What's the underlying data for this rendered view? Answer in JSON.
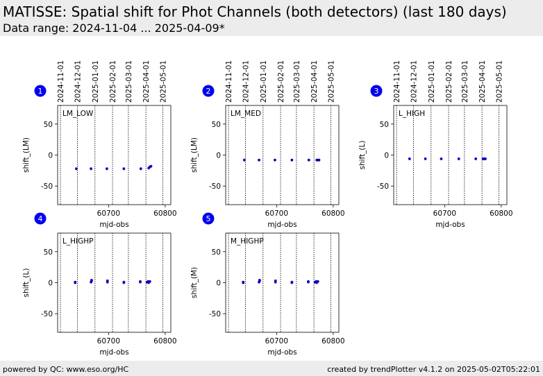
{
  "header": {
    "title": "MATISSE: Spatial shift for Phot Channels (both detectors) (last 180 days)",
    "subtitle": "Data range: 2024-11-04 ... 2025-04-09*"
  },
  "footer": {
    "left": "powered by QC: www.eso.org/HC",
    "right": "created by trendPlotter v4.1.2 on 2025-05-02T05:22:01"
  },
  "colors": {
    "point": "#0000cc",
    "point_alt": "#ff9900",
    "badge": "#0000ee",
    "guide": "#000000"
  },
  "date_guides": [
    "2024-11-01",
    "2024-12-01",
    "2025-01-01",
    "2025-02-01",
    "2025-03-01",
    "2025-04-01",
    "2025-05-01"
  ],
  "date_guides_mjd": [
    60615,
    60645,
    60676,
    60707,
    60735,
    60766,
    60796
  ],
  "chart_data": [
    {
      "type": "scatter",
      "badge": "1",
      "label": "LM_LOW",
      "xlabel": "mjd-obs",
      "ylabel": "shift_(LM)",
      "xlim": [
        60610,
        60810
      ],
      "ylim": [
        -80,
        80
      ],
      "xticks": [
        60700,
        60800
      ],
      "yticks": [
        50,
        0,
        -50
      ],
      "series": [
        {
          "values": [
            [
              60643,
              -22
            ],
            [
              60669,
              -22
            ],
            [
              60697,
              -22
            ],
            [
              60727,
              -22
            ],
            [
              60757,
              -22
            ],
            [
              60771,
              -21
            ],
            [
              60773,
              -19
            ],
            [
              60775,
              -18
            ]
          ]
        }
      ]
    },
    {
      "type": "scatter",
      "badge": "2",
      "label": "LM_MED",
      "xlabel": "mjd-obs",
      "ylabel": "shift_(LM)",
      "xlim": [
        60610,
        60810
      ],
      "ylim": [
        -80,
        80
      ],
      "xticks": [
        60700,
        60800
      ],
      "yticks": [
        50,
        0,
        -50
      ],
      "series": [
        {
          "values": [
            [
              60643,
              -8
            ],
            [
              60669,
              -8
            ],
            [
              60697,
              -8
            ],
            [
              60727,
              -8
            ],
            [
              60757,
              -8
            ],
            [
              60771,
              -8
            ],
            [
              60773,
              -8
            ],
            [
              60775,
              -8
            ]
          ]
        }
      ]
    },
    {
      "type": "scatter",
      "badge": "3",
      "label": "L_HIGH",
      "xlabel": "mjd-obs",
      "ylabel": "shift_(L)",
      "xlim": [
        60610,
        60810
      ],
      "ylim": [
        -80,
        80
      ],
      "xticks": [
        60700,
        60800
      ],
      "yticks": [
        50,
        0,
        -50
      ],
      "series": [
        {
          "values": [
            [
              60638,
              -6
            ],
            [
              60666,
              -6
            ],
            [
              60694,
              -6
            ],
            [
              60725,
              -6
            ],
            [
              60755,
              -6
            ],
            [
              60768,
              -6
            ],
            [
              60770,
              -6
            ],
            [
              60772,
              -6
            ]
          ]
        }
      ]
    },
    {
      "type": "scatter",
      "badge": "4",
      "label": "L_HIGHP",
      "xlabel": "mjd-obs",
      "ylabel": "shift_(L)",
      "xlim": [
        60610,
        60810
      ],
      "ylim": [
        -80,
        80
      ],
      "xticks": [
        60700,
        60800
      ],
      "yticks": [
        50,
        0,
        -50
      ],
      "series": [
        {
          "values": [
            [
              60641,
              1
            ],
            [
              60641,
              0
            ],
            [
              60670,
              3
            ],
            [
              60670,
              4
            ],
            [
              60669,
              1
            ],
            [
              60698,
              1
            ],
            [
              60698,
              3
            ],
            [
              60727,
              0
            ],
            [
              60727,
              1
            ],
            [
              60756,
              1
            ],
            [
              60756,
              2
            ],
            [
              60768,
              1
            ],
            [
              60770,
              2
            ],
            [
              60771,
              0
            ],
            [
              60772,
              1
            ],
            [
              60773,
              2
            ]
          ]
        }
      ]
    },
    {
      "type": "scatter",
      "badge": "5",
      "label": "M_HIGHP",
      "xlabel": "mjd-obs",
      "ylabel": "shift_(M)",
      "xlim": [
        60610,
        60810
      ],
      "ylim": [
        -80,
        80
      ],
      "xticks": [
        60700,
        60800
      ],
      "yticks": [
        50,
        0,
        -50
      ],
      "series": [
        {
          "values": [
            [
              60641,
              1
            ],
            [
              60641,
              0
            ],
            [
              60670,
              3
            ],
            [
              60670,
              4
            ],
            [
              60669,
              1
            ],
            [
              60698,
              1
            ],
            [
              60698,
              3
            ],
            [
              60727,
              0
            ],
            [
              60727,
              1
            ],
            [
              60756,
              1
            ],
            [
              60756,
              2
            ],
            [
              60768,
              1
            ],
            [
              60770,
              2
            ],
            [
              60771,
              0
            ],
            [
              60772,
              1
            ],
            [
              60773,
              2
            ]
          ]
        }
      ]
    }
  ]
}
